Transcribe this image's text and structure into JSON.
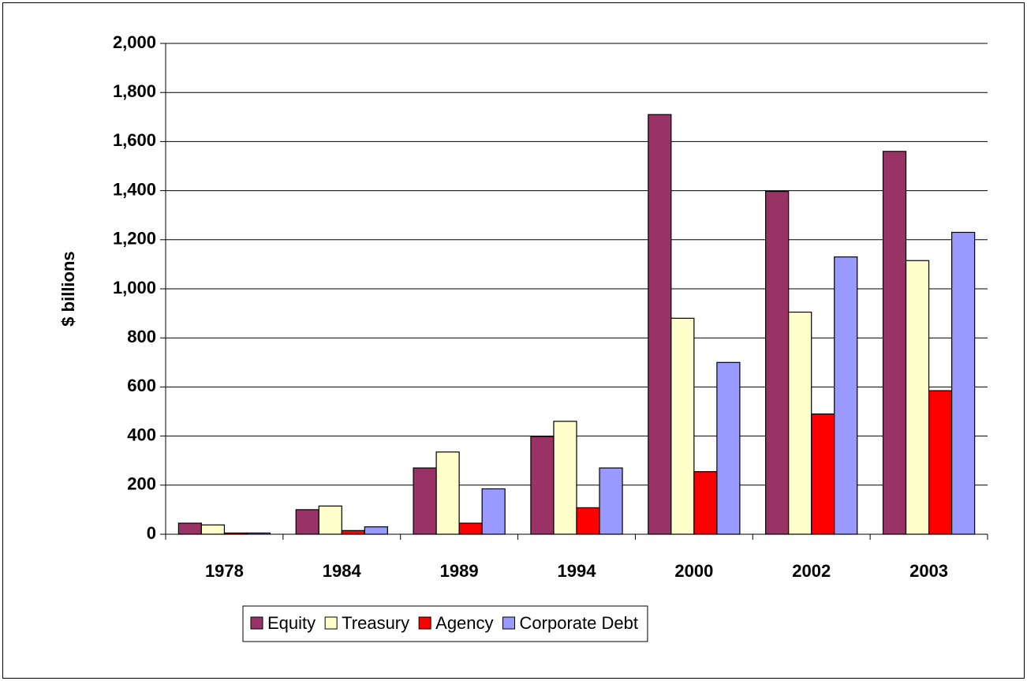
{
  "chart_data": {
    "type": "bar",
    "y_label": "$ billions",
    "categories": [
      "1978",
      "1984",
      "1989",
      "1994",
      "2000",
      "2002",
      "2003"
    ],
    "series": [
      {
        "name": "Equity",
        "color": "#993366",
        "values": [
          45,
          100,
          270,
          398,
          1710,
          1397,
          1560
        ]
      },
      {
        "name": "Treasury",
        "color": "#FFFFCC",
        "values": [
          38,
          115,
          335,
          460,
          880,
          905,
          1115
        ]
      },
      {
        "name": "Agency",
        "color": "#FF0000",
        "values": [
          5,
          15,
          45,
          108,
          255,
          490,
          585
        ]
      },
      {
        "name": "Corporate Debt",
        "color": "#9999FF",
        "values": [
          5,
          30,
          185,
          270,
          700,
          1130,
          1230
        ]
      }
    ],
    "ylim": [
      0,
      2000
    ],
    "yticks": [
      0,
      200,
      400,
      600,
      800,
      {
        "value": 1000,
        "label": "1,000"
      },
      {
        "value": 1200,
        "label": "1,200"
      },
      {
        "value": 1400,
        "label": "1,400"
      },
      {
        "value": 1600,
        "label": "1,600"
      },
      {
        "value": 1800,
        "label": "1,800"
      },
      {
        "value": 2000,
        "label": "2,000"
      }
    ],
    "grid": true,
    "legend": "bottom"
  }
}
